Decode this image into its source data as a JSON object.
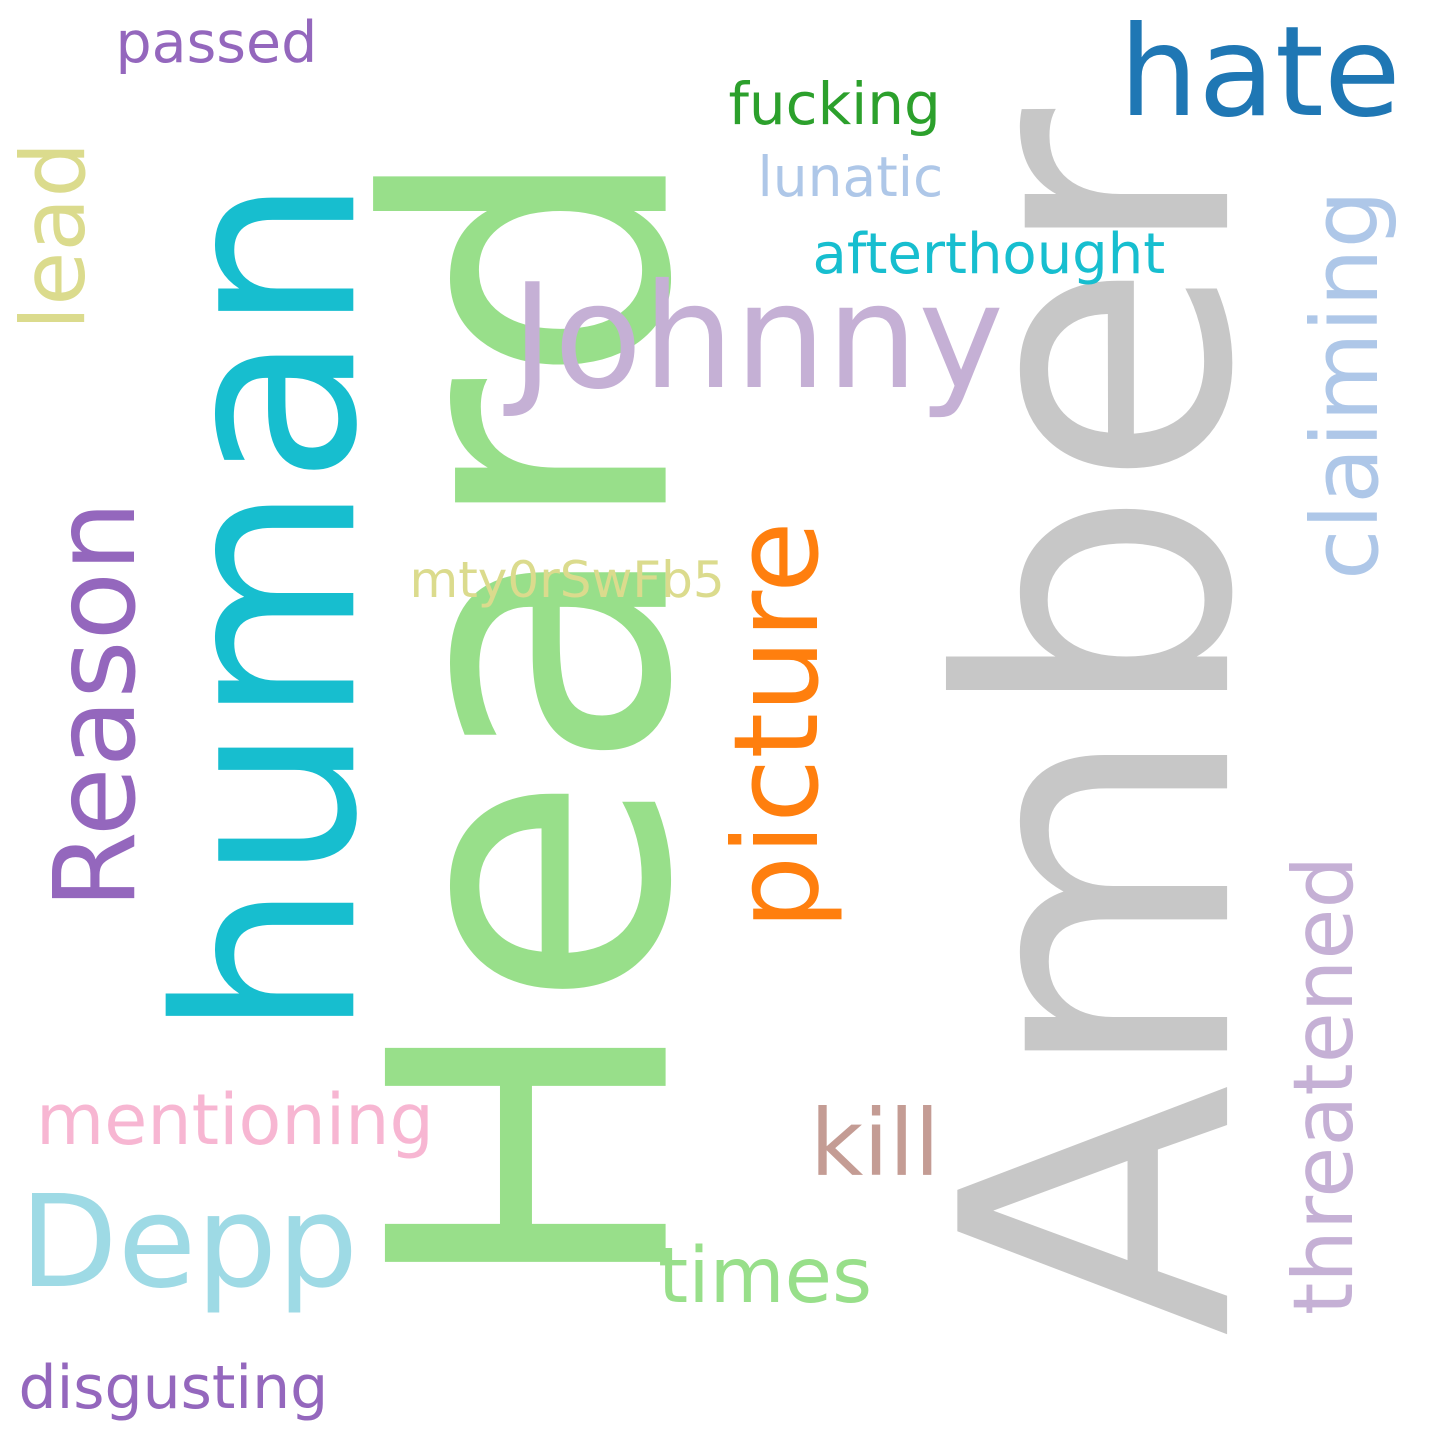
{
  "cloud": {
    "words": [
      {
        "text": "Amber",
        "color": "#c7c7c7"
      },
      {
        "text": "Heard",
        "color": "#98df8a"
      },
      {
        "text": "human",
        "color": "#17becf"
      },
      {
        "text": "Reason",
        "color": "#9467bd"
      },
      {
        "text": "Johnny",
        "color": "#c5b0d5"
      },
      {
        "text": "hate",
        "color": "#1f77b4"
      },
      {
        "text": "picture",
        "color": "#ff7f0e"
      },
      {
        "text": "claiming",
        "color": "#aec7e8"
      },
      {
        "text": "threatened",
        "color": "#c5b0d5"
      },
      {
        "text": "Depp",
        "color": "#9edae5"
      },
      {
        "text": "kill",
        "color": "#c49c94"
      },
      {
        "text": "times",
        "color": "#98df8a"
      },
      {
        "text": "mentioning",
        "color": "#f7b6d2"
      },
      {
        "text": "lead",
        "color": "#dbdb8d"
      },
      {
        "text": "afterthought",
        "color": "#17becf"
      },
      {
        "text": "lunatic",
        "color": "#aec7e8"
      },
      {
        "text": "fucking",
        "color": "#2ca02c"
      },
      {
        "text": "passed",
        "color": "#9467bd"
      },
      {
        "text": "mty0rSwFb5",
        "color": "#dbdb8d"
      },
      {
        "text": "disgusting",
        "color": "#9467bd"
      }
    ]
  }
}
